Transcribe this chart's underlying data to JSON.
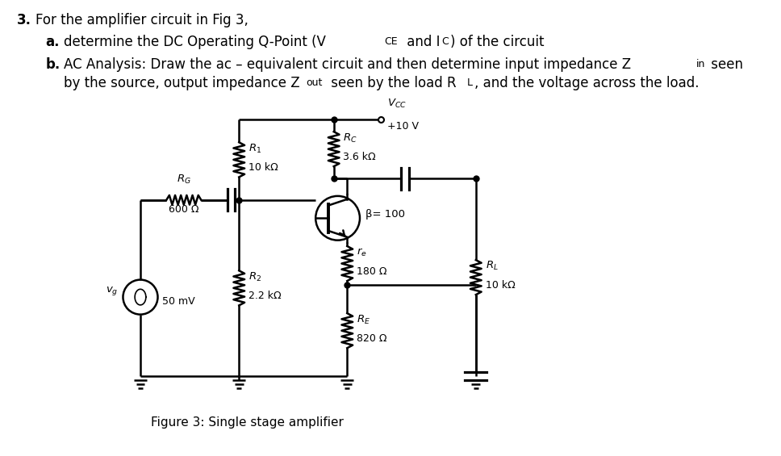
{
  "bg_color": "#ffffff",
  "text_color": "#000000",
  "fig_caption": "Figure 3: Single stage amplifier",
  "circuit": {
    "vcc_label": "$V_{CC}$",
    "vcc_voltage": "+10 V",
    "r1_label": "$R_1$",
    "r1_val": "10 kΩ",
    "r2_label": "$R_2$",
    "r2_val": "2.2 kΩ",
    "rg_label": "$R_G$",
    "rg_val": "600 Ω",
    "rc_label": "$R_C$",
    "rc_val": "3.6 kΩ",
    "re_label": "$r_e$",
    "re_val": "180 Ω",
    "RE_label": "$R_E$",
    "RE_val": "820 Ω",
    "rl_label": "$R_L$",
    "rl_val": "10 kΩ",
    "beta_label": "β= 100",
    "vs_val": "50 mV",
    "vs_label": "$v_g$"
  }
}
